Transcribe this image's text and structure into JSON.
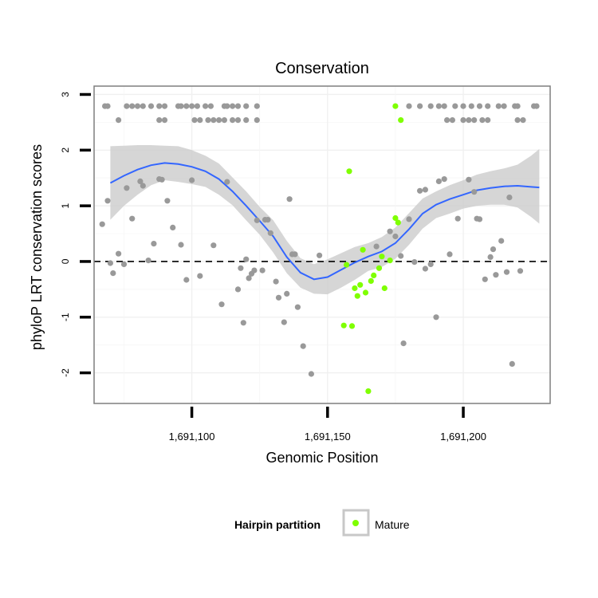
{
  "chart_data": {
    "type": "scatter",
    "title": "Conservation",
    "xlabel": "Genomic Position",
    "ylabel": "phyloP LRT conservation scores",
    "xlim": [
      1691064,
      1691232
    ],
    "ylim": [
      -2.55,
      3.15
    ],
    "x_ticks": [
      1691100,
      1691150,
      1691200
    ],
    "x_tick_labels": [
      "1,691,100",
      "1,691,150",
      "1,691,200"
    ],
    "y_ticks": [
      -2,
      -1,
      0,
      1,
      2,
      3
    ],
    "y_tick_labels": [
      "-2",
      "-1",
      "0",
      "1",
      "2",
      "3"
    ],
    "reference_line": {
      "y": 0,
      "style": "dashed"
    },
    "legend": {
      "title": "Hairpin partition",
      "position": "bottom",
      "entries": [
        {
          "label": "Mature",
          "color": "#7fff00"
        }
      ]
    },
    "colors": {
      "other_points": "#999999",
      "mature_points": "#7fff00",
      "smooth_line": "#3366ff",
      "confidence_band": "#cccccc",
      "panel_border": "#7f7f7f"
    },
    "grid": true,
    "series": [
      {
        "name": "",
        "color": "#999999",
        "points": [
          [
            1691068,
            2.79
          ],
          [
            1691069,
            2.79
          ],
          [
            1691076,
            2.79
          ],
          [
            1691078,
            2.79
          ],
          [
            1691080,
            2.79
          ],
          [
            1691082,
            2.79
          ],
          [
            1691085,
            2.79
          ],
          [
            1691088,
            2.79
          ],
          [
            1691090,
            2.79
          ],
          [
            1691095,
            2.79
          ],
          [
            1691096,
            2.79
          ],
          [
            1691098,
            2.79
          ],
          [
            1691100,
            2.79
          ],
          [
            1691102,
            2.79
          ],
          [
            1691105,
            2.79
          ],
          [
            1691107,
            2.79
          ],
          [
            1691112,
            2.79
          ],
          [
            1691113,
            2.79
          ],
          [
            1691115,
            2.79
          ],
          [
            1691117,
            2.79
          ],
          [
            1691120,
            2.79
          ],
          [
            1691124,
            2.79
          ],
          [
            1691180,
            2.79
          ],
          [
            1691184,
            2.79
          ],
          [
            1691188,
            2.79
          ],
          [
            1691191,
            2.79
          ],
          [
            1691193,
            2.79
          ],
          [
            1691197,
            2.79
          ],
          [
            1691200,
            2.79
          ],
          [
            1691203,
            2.79
          ],
          [
            1691206,
            2.79
          ],
          [
            1691209,
            2.79
          ],
          [
            1691213,
            2.79
          ],
          [
            1691215,
            2.79
          ],
          [
            1691219,
            2.79
          ],
          [
            1691220,
            2.79
          ],
          [
            1691226,
            2.79
          ],
          [
            1691227,
            2.79
          ],
          [
            1691073,
            2.54
          ],
          [
            1691088,
            2.54
          ],
          [
            1691090,
            2.54
          ],
          [
            1691101,
            2.54
          ],
          [
            1691103,
            2.54
          ],
          [
            1691106,
            2.54
          ],
          [
            1691108,
            2.54
          ],
          [
            1691110,
            2.54
          ],
          [
            1691112,
            2.54
          ],
          [
            1691115,
            2.54
          ],
          [
            1691117,
            2.54
          ],
          [
            1691120,
            2.54
          ],
          [
            1691124,
            2.54
          ],
          [
            1691194,
            2.54
          ],
          [
            1691196,
            2.54
          ],
          [
            1691200,
            2.54
          ],
          [
            1691202,
            2.54
          ],
          [
            1691204,
            2.54
          ],
          [
            1691207,
            2.54
          ],
          [
            1691209,
            2.54
          ],
          [
            1691220,
            2.54
          ],
          [
            1691222,
            2.54
          ],
          [
            1691067,
            0.67
          ],
          [
            1691069,
            1.09
          ],
          [
            1691070,
            -0.03
          ],
          [
            1691071,
            -0.21
          ],
          [
            1691073,
            0.14
          ],
          [
            1691075,
            -0.05
          ],
          [
            1691076,
            1.32
          ],
          [
            1691078,
            0.77
          ],
          [
            1691081,
            1.44
          ],
          [
            1691082,
            1.36
          ],
          [
            1691084,
            0.02
          ],
          [
            1691086,
            0.32
          ],
          [
            1691088,
            1.48
          ],
          [
            1691089,
            1.47
          ],
          [
            1691091,
            1.09
          ],
          [
            1691093,
            0.61
          ],
          [
            1691096,
            0.3
          ],
          [
            1691098,
            -0.33
          ],
          [
            1691100,
            1.46
          ],
          [
            1691103,
            -0.26
          ],
          [
            1691108,
            0.29
          ],
          [
            1691111,
            -0.77
          ],
          [
            1691113,
            1.43
          ],
          [
            1691117,
            -0.5
          ],
          [
            1691118,
            -0.12
          ],
          [
            1691119,
            -1.1
          ],
          [
            1691120,
            0.04
          ],
          [
            1691121,
            -0.3
          ],
          [
            1691122,
            -0.22
          ],
          [
            1691123,
            -0.16
          ],
          [
            1691124,
            0.74
          ],
          [
            1691126,
            -0.16
          ],
          [
            1691127,
            0.75
          ],
          [
            1691128,
            0.75
          ],
          [
            1691129,
            0.51
          ],
          [
            1691131,
            -0.36
          ],
          [
            1691132,
            -0.65
          ],
          [
            1691134,
            -1.09
          ],
          [
            1691135,
            -0.58
          ],
          [
            1691136,
            1.12
          ],
          [
            1691137,
            0.13
          ],
          [
            1691138,
            0.13
          ],
          [
            1691139,
            -0.82
          ],
          [
            1691141,
            -1.52
          ],
          [
            1691144,
            -2.02
          ],
          [
            1691147,
            0.11
          ],
          [
            1691168,
            0.27
          ],
          [
            1691173,
            0.54
          ],
          [
            1691175,
            0.45
          ],
          [
            1691177,
            0.1
          ],
          [
            1691178,
            -1.47
          ],
          [
            1691180,
            0.76
          ],
          [
            1691182,
            -0.01
          ],
          [
            1691184,
            1.27
          ],
          [
            1691186,
            1.29
          ],
          [
            1691186,
            -0.13
          ],
          [
            1691188,
            -0.05
          ],
          [
            1691190,
            -1.0
          ],
          [
            1691191,
            1.44
          ],
          [
            1691193,
            1.48
          ],
          [
            1691195,
            0.13
          ],
          [
            1691198,
            0.77
          ],
          [
            1691202,
            1.47
          ],
          [
            1691204,
            1.25
          ],
          [
            1691205,
            0.77
          ],
          [
            1691206,
            0.76
          ],
          [
            1691208,
            -0.32
          ],
          [
            1691210,
            0.08
          ],
          [
            1691211,
            0.22
          ],
          [
            1691212,
            -0.24
          ],
          [
            1691214,
            0.37
          ],
          [
            1691216,
            -0.19
          ],
          [
            1691217,
            1.15
          ],
          [
            1691218,
            -1.84
          ],
          [
            1691221,
            -0.17
          ]
        ]
      },
      {
        "name": "Mature",
        "color": "#7fff00",
        "points": [
          [
            1691158,
            1.62
          ],
          [
            1691175,
            2.79
          ],
          [
            1691175,
            0.78
          ],
          [
            1691176,
            0.7
          ],
          [
            1691177,
            2.54
          ],
          [
            1691157,
            -0.06
          ],
          [
            1691163,
            0.21
          ],
          [
            1691160,
            -0.48
          ],
          [
            1691161,
            -0.62
          ],
          [
            1691162,
            -0.42
          ],
          [
            1691164,
            -0.56
          ],
          [
            1691166,
            -0.35
          ],
          [
            1691167,
            -0.25
          ],
          [
            1691169,
            -0.12
          ],
          [
            1691170,
            0.09
          ],
          [
            1691171,
            -0.48
          ],
          [
            1691173,
            0.02
          ],
          [
            1691156,
            -1.15
          ],
          [
            1691159,
            -1.16
          ],
          [
            1691165,
            -2.33
          ]
        ]
      }
    ],
    "smooth": {
      "x": [
        1691070,
        1691075,
        1691080,
        1691085,
        1691090,
        1691095,
        1691100,
        1691105,
        1691110,
        1691115,
        1691120,
        1691125,
        1691130,
        1691135,
        1691140,
        1691145,
        1691150,
        1691155,
        1691160,
        1691165,
        1691170,
        1691175,
        1691180,
        1691185,
        1691190,
        1691195,
        1691200,
        1691205,
        1691210,
        1691215,
        1691220,
        1691225,
        1691228
      ],
      "y": [
        1.41,
        1.54,
        1.65,
        1.73,
        1.77,
        1.75,
        1.7,
        1.62,
        1.48,
        1.26,
        1.0,
        0.73,
        0.45,
        0.08,
        -0.2,
        -0.32,
        -0.28,
        -0.15,
        -0.02,
        0.09,
        0.18,
        0.33,
        0.58,
        0.86,
        1.02,
        1.12,
        1.2,
        1.28,
        1.32,
        1.35,
        1.36,
        1.34,
        1.33
      ],
      "upper": [
        2.07,
        2.08,
        2.09,
        2.09,
        2.08,
        2.07,
        2.0,
        1.9,
        1.76,
        1.51,
        1.26,
        0.98,
        0.74,
        0.37,
        0.06,
        -0.05,
        0.04,
        0.15,
        0.26,
        0.33,
        0.44,
        0.61,
        0.87,
        1.13,
        1.26,
        1.37,
        1.46,
        1.56,
        1.62,
        1.67,
        1.74,
        1.9,
        2.02
      ],
      "lower": [
        0.75,
        1.0,
        1.2,
        1.37,
        1.46,
        1.43,
        1.39,
        1.34,
        1.2,
        1.01,
        0.74,
        0.48,
        0.16,
        -0.21,
        -0.47,
        -0.58,
        -0.59,
        -0.47,
        -0.33,
        -0.17,
        -0.1,
        0.05,
        0.3,
        0.59,
        0.78,
        0.86,
        0.95,
        1.0,
        1.02,
        1.02,
        0.97,
        0.8,
        0.68
      ]
    }
  }
}
